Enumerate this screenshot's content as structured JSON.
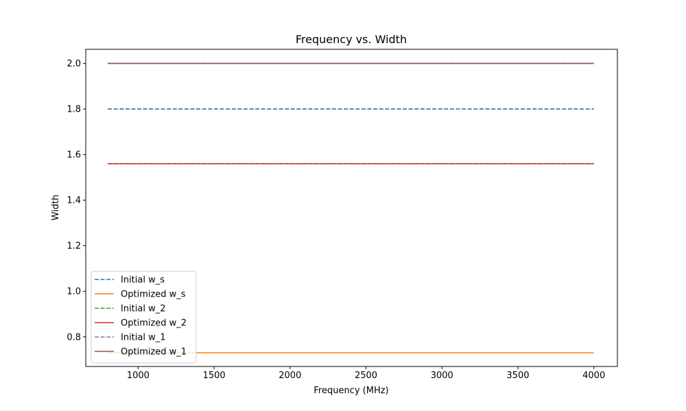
{
  "chart_data": {
    "type": "line",
    "title": "Frequency vs. Width",
    "xlabel": "Frequency (MHz)",
    "ylabel": "Width",
    "xlim": [
      655,
      4155
    ],
    "ylim": [
      0.67,
      2.062
    ],
    "xticks": [
      1000,
      1500,
      2000,
      2500,
      3000,
      3500,
      4000
    ],
    "yticks": [
      0.8,
      1.0,
      1.2,
      1.4,
      1.6,
      1.8,
      2.0
    ],
    "grid": false,
    "legend_position": "lower-left",
    "x": [
      800,
      4000
    ],
    "series": [
      {
        "name": "Initial w_s",
        "values": [
          1.8,
          1.8
        ],
        "color": "#1f77b4",
        "dashed": true
      },
      {
        "name": "Optimized w_s",
        "values": [
          0.73,
          0.73
        ],
        "color": "#ff7f0e",
        "dashed": false
      },
      {
        "name": "Initial w_2",
        "values": [
          1.56,
          1.56
        ],
        "color": "#2ca02c",
        "dashed": true
      },
      {
        "name": "Optimized w_2",
        "values": [
          1.56,
          1.56
        ],
        "color": "#d62728",
        "dashed": false
      },
      {
        "name": "Initial w_1",
        "values": [
          2.0,
          2.0
        ],
        "color": "#9467bd",
        "dashed": true
      },
      {
        "name": "Optimized w_1",
        "values": [
          2.0,
          2.0
        ],
        "color": "#8c564b",
        "dashed": false
      }
    ]
  }
}
